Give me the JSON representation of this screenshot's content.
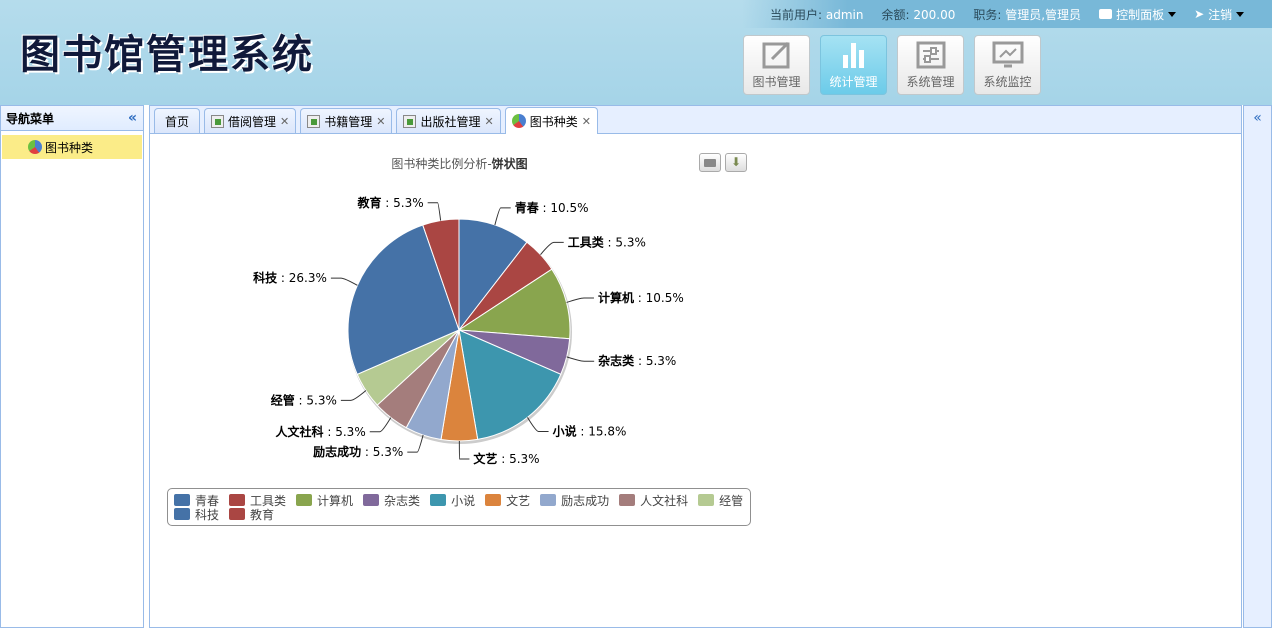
{
  "app": {
    "title": "图书馆管理系统"
  },
  "topbar": {
    "user_label": "当前用户:",
    "user": "admin",
    "balance_label": "余额:",
    "balance": "200.00",
    "role_label": "职务:",
    "role": "管理员,管理员",
    "control_panel": "控制面板",
    "logout": "注销"
  },
  "modules": [
    {
      "label": "图书管理",
      "icon": "edit-icon"
    },
    {
      "label": "统计管理",
      "icon": "bar-chart-icon",
      "active": true
    },
    {
      "label": "系统管理",
      "icon": "sliders-icon"
    },
    {
      "label": "系统监控",
      "icon": "monitor-icon"
    }
  ],
  "sidebar": {
    "title": "导航菜单",
    "items": [
      {
        "label": "图书种类",
        "icon": "pie-chart-icon"
      }
    ]
  },
  "tabs": [
    {
      "label": "首页"
    },
    {
      "label": "借阅管理",
      "closable": true
    },
    {
      "label": "书籍管理",
      "closable": true
    },
    {
      "label": "出版社管理",
      "closable": true
    },
    {
      "label": "图书种类",
      "closable": true,
      "selected": true
    }
  ],
  "chart_data": {
    "type": "pie",
    "title_prefix": "图书种类比例分析-",
    "title_bold": "饼状图",
    "legend_placement": "bottom",
    "slices": [
      {
        "name": "青春",
        "value": 10.5,
        "color": "#4572A7"
      },
      {
        "name": "工具类",
        "value": 5.3,
        "color": "#AA4643"
      },
      {
        "name": "计算机",
        "value": 10.5,
        "color": "#89A54E"
      },
      {
        "name": "杂志类",
        "value": 5.3,
        "color": "#80699B"
      },
      {
        "name": "小说",
        "value": 15.8,
        "color": "#3D96AE"
      },
      {
        "name": "文艺",
        "value": 5.3,
        "color": "#DB843D"
      },
      {
        "name": "励志成功",
        "value": 5.3,
        "color": "#92A8CD"
      },
      {
        "name": "人文社科",
        "value": 5.3,
        "color": "#A47D7C"
      },
      {
        "name": "经管",
        "value": 5.3,
        "color": "#B5CA92"
      },
      {
        "name": "科技",
        "value": 26.3,
        "color": "#4572A7"
      },
      {
        "name": "教育",
        "value": 5.3,
        "color": "#AA4643"
      }
    ]
  }
}
